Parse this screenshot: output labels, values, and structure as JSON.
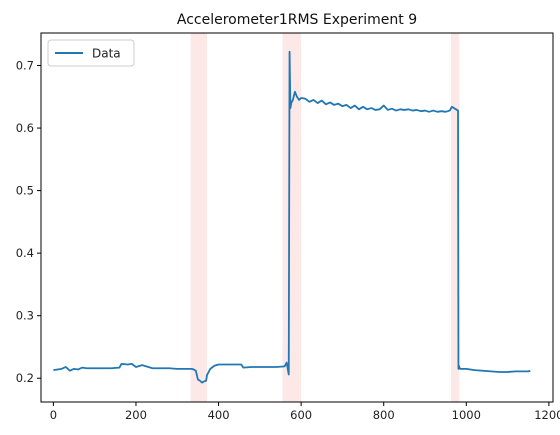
{
  "chart_data": {
    "type": "line",
    "title": "Accelerometer1RMS Experiment 9",
    "xlabel": "",
    "ylabel": "",
    "xlim": [
      -30,
      1210
    ],
    "ylim": [
      0.162,
      0.752
    ],
    "x_ticks": [
      0,
      200,
      400,
      600,
      800,
      1000,
      1200
    ],
    "y_ticks": [
      0.2,
      0.3,
      0.4,
      0.5,
      0.6,
      0.7
    ],
    "x_tick_labels": [
      "0",
      "200",
      "400",
      "600",
      "800",
      "1000",
      "1200"
    ],
    "y_tick_labels": [
      "0.2",
      "0.3",
      "0.4",
      "0.5",
      "0.6",
      "0.7"
    ],
    "grid": false,
    "legend": {
      "position": "top-left",
      "entries": [
        "Data"
      ]
    },
    "line_color": "#1f77b4",
    "highlight_color": "#fde8e8",
    "highlight_regions": [
      [
        332,
        372
      ],
      [
        555,
        600
      ],
      [
        963,
        983
      ]
    ],
    "series": [
      {
        "name": "Data",
        "x": [
          0,
          20,
          30,
          40,
          50,
          60,
          70,
          80,
          100,
          120,
          140,
          160,
          165,
          180,
          190,
          200,
          215,
          225,
          240,
          260,
          280,
          300,
          320,
          335,
          340,
          345,
          350,
          355,
          360,
          365,
          370,
          372,
          380,
          390,
          400,
          420,
          440,
          455,
          460,
          480,
          500,
          520,
          540,
          560,
          565,
          570,
          572,
          574,
          576,
          580,
          585,
          590,
          595,
          600,
          610,
          620,
          630,
          640,
          650,
          660,
          670,
          680,
          690,
          700,
          710,
          720,
          730,
          740,
          750,
          760,
          770,
          780,
          790,
          800,
          810,
          820,
          830,
          840,
          850,
          860,
          870,
          880,
          890,
          900,
          910,
          920,
          930,
          940,
          950,
          960,
          965,
          970,
          975,
          980,
          981,
          982,
          983,
          985,
          1000,
          1020,
          1040,
          1060,
          1080,
          1100,
          1120,
          1140,
          1150,
          1155
        ],
        "values": [
          0.213,
          0.215,
          0.218,
          0.212,
          0.215,
          0.214,
          0.217,
          0.216,
          0.216,
          0.216,
          0.216,
          0.217,
          0.223,
          0.222,
          0.223,
          0.218,
          0.221,
          0.219,
          0.216,
          0.216,
          0.216,
          0.215,
          0.215,
          0.215,
          0.214,
          0.212,
          0.198,
          0.196,
          0.193,
          0.195,
          0.196,
          0.205,
          0.215,
          0.22,
          0.222,
          0.222,
          0.222,
          0.222,
          0.217,
          0.218,
          0.218,
          0.218,
          0.218,
          0.219,
          0.225,
          0.206,
          0.722,
          0.632,
          0.64,
          0.645,
          0.658,
          0.65,
          0.645,
          0.648,
          0.647,
          0.642,
          0.645,
          0.64,
          0.644,
          0.638,
          0.641,
          0.637,
          0.639,
          0.635,
          0.637,
          0.632,
          0.636,
          0.63,
          0.634,
          0.63,
          0.632,
          0.629,
          0.63,
          0.636,
          0.629,
          0.631,
          0.628,
          0.63,
          0.629,
          0.63,
          0.628,
          0.629,
          0.627,
          0.628,
          0.626,
          0.628,
          0.626,
          0.627,
          0.626,
          0.628,
          0.634,
          0.632,
          0.63,
          0.628,
          0.215,
          0.22,
          0.218,
          0.215,
          0.215,
          0.213,
          0.212,
          0.211,
          0.21,
          0.21,
          0.211,
          0.211,
          0.211,
          0.212
        ]
      }
    ]
  }
}
